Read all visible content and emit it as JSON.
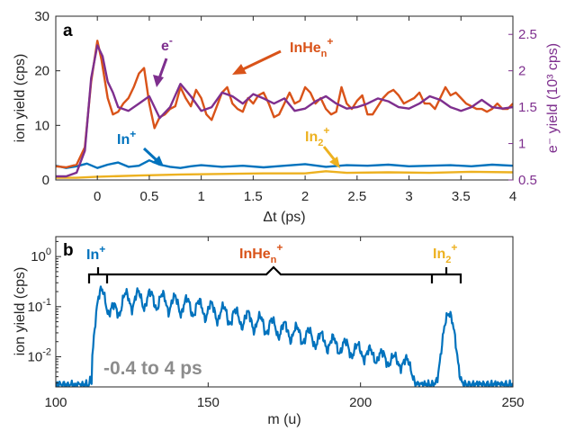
{
  "chart_data": [
    {
      "panel": "a",
      "type": "line",
      "xlabel": "Δt (ps)",
      "ylabel_left": "ion yield (cps)",
      "ylabel_right": "e⁻ yield (10³ cps)",
      "xlim": [
        -0.4,
        4
      ],
      "ylim_left": [
        0,
        30
      ],
      "ylim_right": [
        0.5,
        2.75
      ],
      "x_ticks": [
        "0",
        "0.5",
        "1",
        "1.5",
        "2",
        "2.5",
        "3",
        "3.5",
        "4"
      ],
      "y_ticks_left": [
        "0",
        "10",
        "20",
        "30"
      ],
      "y_ticks_right": [
        "0.5",
        "1",
        "1.5",
        "2",
        "2.5"
      ],
      "series": [
        {
          "name": "InHeₙ⁺",
          "axis": "left",
          "color": "#d95319",
          "x": [
            -0.4,
            -0.3,
            -0.2,
            -0.12,
            -0.06,
            0,
            0.04,
            0.1,
            0.15,
            0.2,
            0.25,
            0.3,
            0.35,
            0.4,
            0.45,
            0.5,
            0.55,
            0.6,
            0.65,
            0.7,
            0.75,
            0.8,
            0.85,
            0.9,
            0.95,
            1.0,
            1.05,
            1.1,
            1.15,
            1.2,
            1.25,
            1.3,
            1.35,
            1.4,
            1.45,
            1.5,
            1.55,
            1.6,
            1.65,
            1.7,
            1.75,
            1.8,
            1.85,
            1.9,
            1.95,
            2.0,
            2.05,
            2.1,
            2.15,
            2.2,
            2.25,
            2.3,
            2.35,
            2.4,
            2.45,
            2.5,
            2.55,
            2.6,
            2.65,
            2.7,
            2.75,
            2.8,
            2.85,
            2.9,
            2.95,
            3.0,
            3.05,
            3.1,
            3.15,
            3.2,
            3.25,
            3.3,
            3.35,
            3.4,
            3.45,
            3.5,
            3.55,
            3.6,
            3.65,
            3.7,
            3.75,
            3.8,
            3.85,
            3.9,
            3.95,
            4.0
          ],
          "y": [
            2.5,
            2.3,
            2.8,
            6,
            18,
            25.5,
            22,
            15,
            12,
            12.5,
            14,
            15,
            17,
            19.5,
            20.5,
            14,
            9.5,
            11.5,
            12,
            13,
            13.5,
            17,
            15,
            13.5,
            16.5,
            15,
            12,
            11,
            13.5,
            16,
            17,
            14,
            13,
            12.5,
            15,
            14,
            15.5,
            16,
            14,
            11.5,
            12,
            14,
            16,
            14,
            14.5,
            17,
            16,
            14,
            15,
            13,
            12,
            12.5,
            17,
            14,
            13,
            14.5,
            15.5,
            12,
            12,
            13.5,
            15,
            16,
            16.5,
            15.5,
            14,
            14.5,
            15,
            16,
            14,
            14,
            13,
            15,
            17,
            15.5,
            16,
            15,
            14,
            13.5,
            13,
            13,
            12.5,
            13,
            14,
            13,
            13,
            14
          ]
        },
        {
          "name": "e⁻",
          "axis": "right",
          "color": "#7e2f8e",
          "x": [
            -0.4,
            -0.3,
            -0.2,
            -0.12,
            -0.06,
            0,
            0.05,
            0.1,
            0.15,
            0.2,
            0.3,
            0.4,
            0.5,
            0.55,
            0.6,
            0.7,
            0.8,
            0.9,
            1.0,
            1.1,
            1.2,
            1.3,
            1.4,
            1.5,
            1.6,
            1.7,
            1.8,
            1.9,
            2.0,
            2.1,
            2.2,
            2.3,
            2.4,
            2.5,
            2.6,
            2.7,
            2.8,
            2.9,
            3.0,
            3.1,
            3.2,
            3.3,
            3.4,
            3.5,
            3.6,
            3.7,
            3.8,
            3.9,
            4.0
          ],
          "y": [
            0.55,
            0.55,
            0.6,
            0.9,
            1.9,
            2.35,
            2.2,
            1.85,
            1.7,
            1.5,
            1.45,
            1.55,
            1.65,
            1.5,
            1.35,
            1.5,
            1.82,
            1.65,
            1.45,
            1.5,
            1.7,
            1.65,
            1.55,
            1.68,
            1.62,
            1.55,
            1.62,
            1.45,
            1.48,
            1.58,
            1.65,
            1.55,
            1.48,
            1.5,
            1.55,
            1.62,
            1.58,
            1.5,
            1.48,
            1.55,
            1.65,
            1.6,
            1.5,
            1.45,
            1.5,
            1.6,
            1.5,
            1.48,
            1.5
          ]
        },
        {
          "name": "In⁺",
          "axis": "left",
          "color": "#0072bd",
          "x": [
            -0.4,
            -0.3,
            -0.2,
            -0.1,
            0,
            0.1,
            0.2,
            0.3,
            0.4,
            0.5,
            0.6,
            0.7,
            0.8,
            0.9,
            1.0,
            1.2,
            1.4,
            1.6,
            1.8,
            2.0,
            2.2,
            2.4,
            2.6,
            2.8,
            3.0,
            3.2,
            3.4,
            3.6,
            3.8,
            4.0
          ],
          "y": [
            2.6,
            2.2,
            2.5,
            3,
            2.2,
            2.8,
            3.2,
            2.4,
            2.6,
            3.6,
            2.8,
            2.4,
            2.2,
            2.5,
            2.7,
            2.4,
            2.6,
            2.3,
            2.6,
            2.9,
            2.4,
            2.7,
            2.6,
            2.8,
            2.5,
            2.6,
            2.7,
            2.5,
            2.8,
            2.6
          ]
        },
        {
          "name": "In₂⁺",
          "axis": "left",
          "color": "#edb120",
          "x": [
            -0.4,
            -0.2,
            0,
            0.4,
            0.8,
            1.2,
            1.6,
            2.0,
            2.2,
            2.4,
            2.8,
            3.2,
            3.6,
            4.0
          ],
          "y": [
            0.4,
            0.4,
            0.6,
            0.8,
            1.0,
            1.1,
            1.2,
            1.2,
            1.6,
            1.3,
            1.4,
            1.3,
            1.5,
            1.4
          ]
        }
      ],
      "annotations": {
        "e": "e",
        "e_sup": "-",
        "inhe_base": "InHe",
        "inhe_sub": "n",
        "inhe_sup": "+",
        "in_base": "In",
        "in_sup": "+",
        "in2_base": "In",
        "in2_sub": "2",
        "in2_sup": "+"
      }
    },
    {
      "panel": "b",
      "type": "line",
      "xlabel": "m (u)",
      "ylabel": "ion yield (cps)",
      "y_scale": "log",
      "xlim": [
        100,
        250
      ],
      "ylim": [
        0.0025,
        2.5
      ],
      "x_ticks": [
        "100",
        "150",
        "200",
        "250"
      ],
      "y_ticks": [
        {
          "base": "10",
          "exp": "0"
        },
        {
          "base": "10",
          "exp": "-1"
        },
        {
          "base": "10",
          "exp": "-2"
        }
      ],
      "series": [
        {
          "name": "-0.4 to 4 ps",
          "color": "#0072bd",
          "peaks": [
            {
              "m": 115,
              "y": 0.22
            },
            {
              "m": 119,
              "y": 0.11
            },
            {
              "m": 123,
              "y": 0.19
            },
            {
              "m": 127,
              "y": 0.2
            },
            {
              "m": 131,
              "y": 0.2
            },
            {
              "m": 135,
              "y": 0.18
            },
            {
              "m": 139,
              "y": 0.16
            },
            {
              "m": 143,
              "y": 0.145
            },
            {
              "m": 147,
              "y": 0.13
            },
            {
              "m": 151,
              "y": 0.115
            },
            {
              "m": 155,
              "y": 0.1
            },
            {
              "m": 159,
              "y": 0.085
            },
            {
              "m": 163,
              "y": 0.075
            },
            {
              "m": 167,
              "y": 0.063
            },
            {
              "m": 171,
              "y": 0.053
            },
            {
              "m": 175,
              "y": 0.045
            },
            {
              "m": 179,
              "y": 0.038
            },
            {
              "m": 183,
              "y": 0.032
            },
            {
              "m": 187,
              "y": 0.027
            },
            {
              "m": 191,
              "y": 0.022
            },
            {
              "m": 195,
              "y": 0.018
            },
            {
              "m": 199,
              "y": 0.015
            },
            {
              "m": 203,
              "y": 0.012
            },
            {
              "m": 207,
              "y": 0.01
            },
            {
              "m": 211,
              "y": 0.008
            },
            {
              "m": 215,
              "y": 0.0065
            },
            {
              "m": 229,
              "y": 0.07
            }
          ]
        }
      ],
      "brackets": [
        {
          "label": "In",
          "label_sup": "+",
          "color": "#0072bd"
        },
        {
          "label": "InHe",
          "label_sub": "n",
          "label_sup": "+",
          "color": "#d95319"
        },
        {
          "label": "In",
          "label_sub": "2",
          "label_sup": "+",
          "color": "#edb120"
        }
      ],
      "annotation": "-0.4 to 4 ps"
    }
  ]
}
